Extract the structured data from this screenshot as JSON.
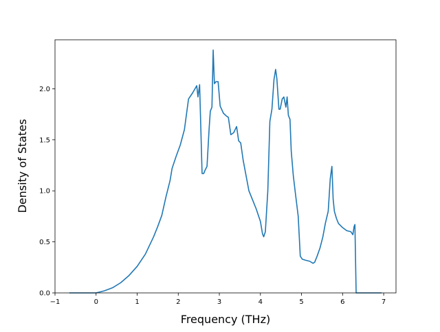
{
  "chart_data": {
    "type": "line",
    "title": "",
    "xlabel": "Frequency (THz)",
    "ylabel": "Density of States",
    "xlim": [
      -1.0,
      7.3
    ],
    "ylim": [
      0.0,
      2.48
    ],
    "xticks": [
      -1,
      0,
      1,
      2,
      3,
      4,
      5,
      6,
      7
    ],
    "xtick_labels": [
      "−1",
      "0",
      "1",
      "2",
      "3",
      "4",
      "5",
      "6",
      "7"
    ],
    "yticks": [
      0.0,
      0.5,
      1.0,
      1.5,
      2.0
    ],
    "ytick_labels": [
      "0.0",
      "0.5",
      "1.0",
      "1.5",
      "2.0"
    ],
    "grid": false,
    "legend": "none",
    "line_color": "#1f77b4",
    "series": [
      {
        "x": [
          -0.65,
          0.0,
          0.2,
          0.4,
          0.6,
          0.8,
          1.0,
          1.2,
          1.4,
          1.5,
          1.6,
          1.7,
          1.8,
          1.85,
          1.95,
          2.05,
          2.15,
          2.25,
          2.35,
          2.45,
          2.48,
          2.52,
          2.58,
          2.62,
          2.65,
          2.7,
          2.75,
          2.78,
          2.82,
          2.85,
          2.88,
          2.92,
          2.97,
          3.02,
          3.1,
          3.18,
          3.22,
          3.28,
          3.35,
          3.42,
          3.47,
          3.52,
          3.58,
          3.65,
          3.72,
          3.8,
          3.9,
          4.0,
          4.05,
          4.08,
          4.12,
          4.18,
          4.23,
          4.28,
          4.33,
          4.37,
          4.4,
          4.45,
          4.48,
          4.53,
          4.57,
          4.62,
          4.65,
          4.68,
          4.72,
          4.75,
          4.8,
          4.85,
          4.92,
          4.97,
          5.02,
          5.1,
          5.2,
          5.28,
          5.32,
          5.38,
          5.45,
          5.52,
          5.58,
          5.65,
          5.7,
          5.74,
          5.77,
          5.8,
          5.85,
          5.9,
          6.0,
          6.1,
          6.2,
          6.25,
          6.28,
          6.3,
          6.33,
          6.35,
          6.5,
          6.95
        ],
        "y": [
          0.0,
          0.0,
          0.02,
          0.05,
          0.1,
          0.17,
          0.26,
          0.38,
          0.55,
          0.65,
          0.76,
          0.94,
          1.1,
          1.22,
          1.34,
          1.45,
          1.6,
          1.9,
          1.96,
          2.03,
          1.92,
          2.04,
          1.17,
          1.17,
          1.2,
          1.24,
          1.6,
          1.78,
          1.82,
          2.38,
          2.05,
          2.07,
          2.07,
          1.83,
          1.76,
          1.73,
          1.72,
          1.55,
          1.57,
          1.63,
          1.49,
          1.47,
          1.3,
          1.15,
          1.0,
          0.92,
          0.82,
          0.7,
          0.58,
          0.55,
          0.6,
          1.0,
          1.68,
          1.8,
          2.09,
          2.19,
          2.1,
          1.8,
          1.8,
          1.9,
          1.92,
          1.82,
          1.92,
          1.74,
          1.7,
          1.39,
          1.15,
          0.98,
          0.75,
          0.36,
          0.33,
          0.32,
          0.31,
          0.29,
          0.3,
          0.36,
          0.44,
          0.55,
          0.68,
          0.8,
          1.12,
          1.24,
          0.92,
          0.8,
          0.73,
          0.68,
          0.64,
          0.61,
          0.6,
          0.57,
          0.65,
          0.67,
          0.0,
          0.0,
          0.0,
          0.0
        ]
      }
    ]
  }
}
